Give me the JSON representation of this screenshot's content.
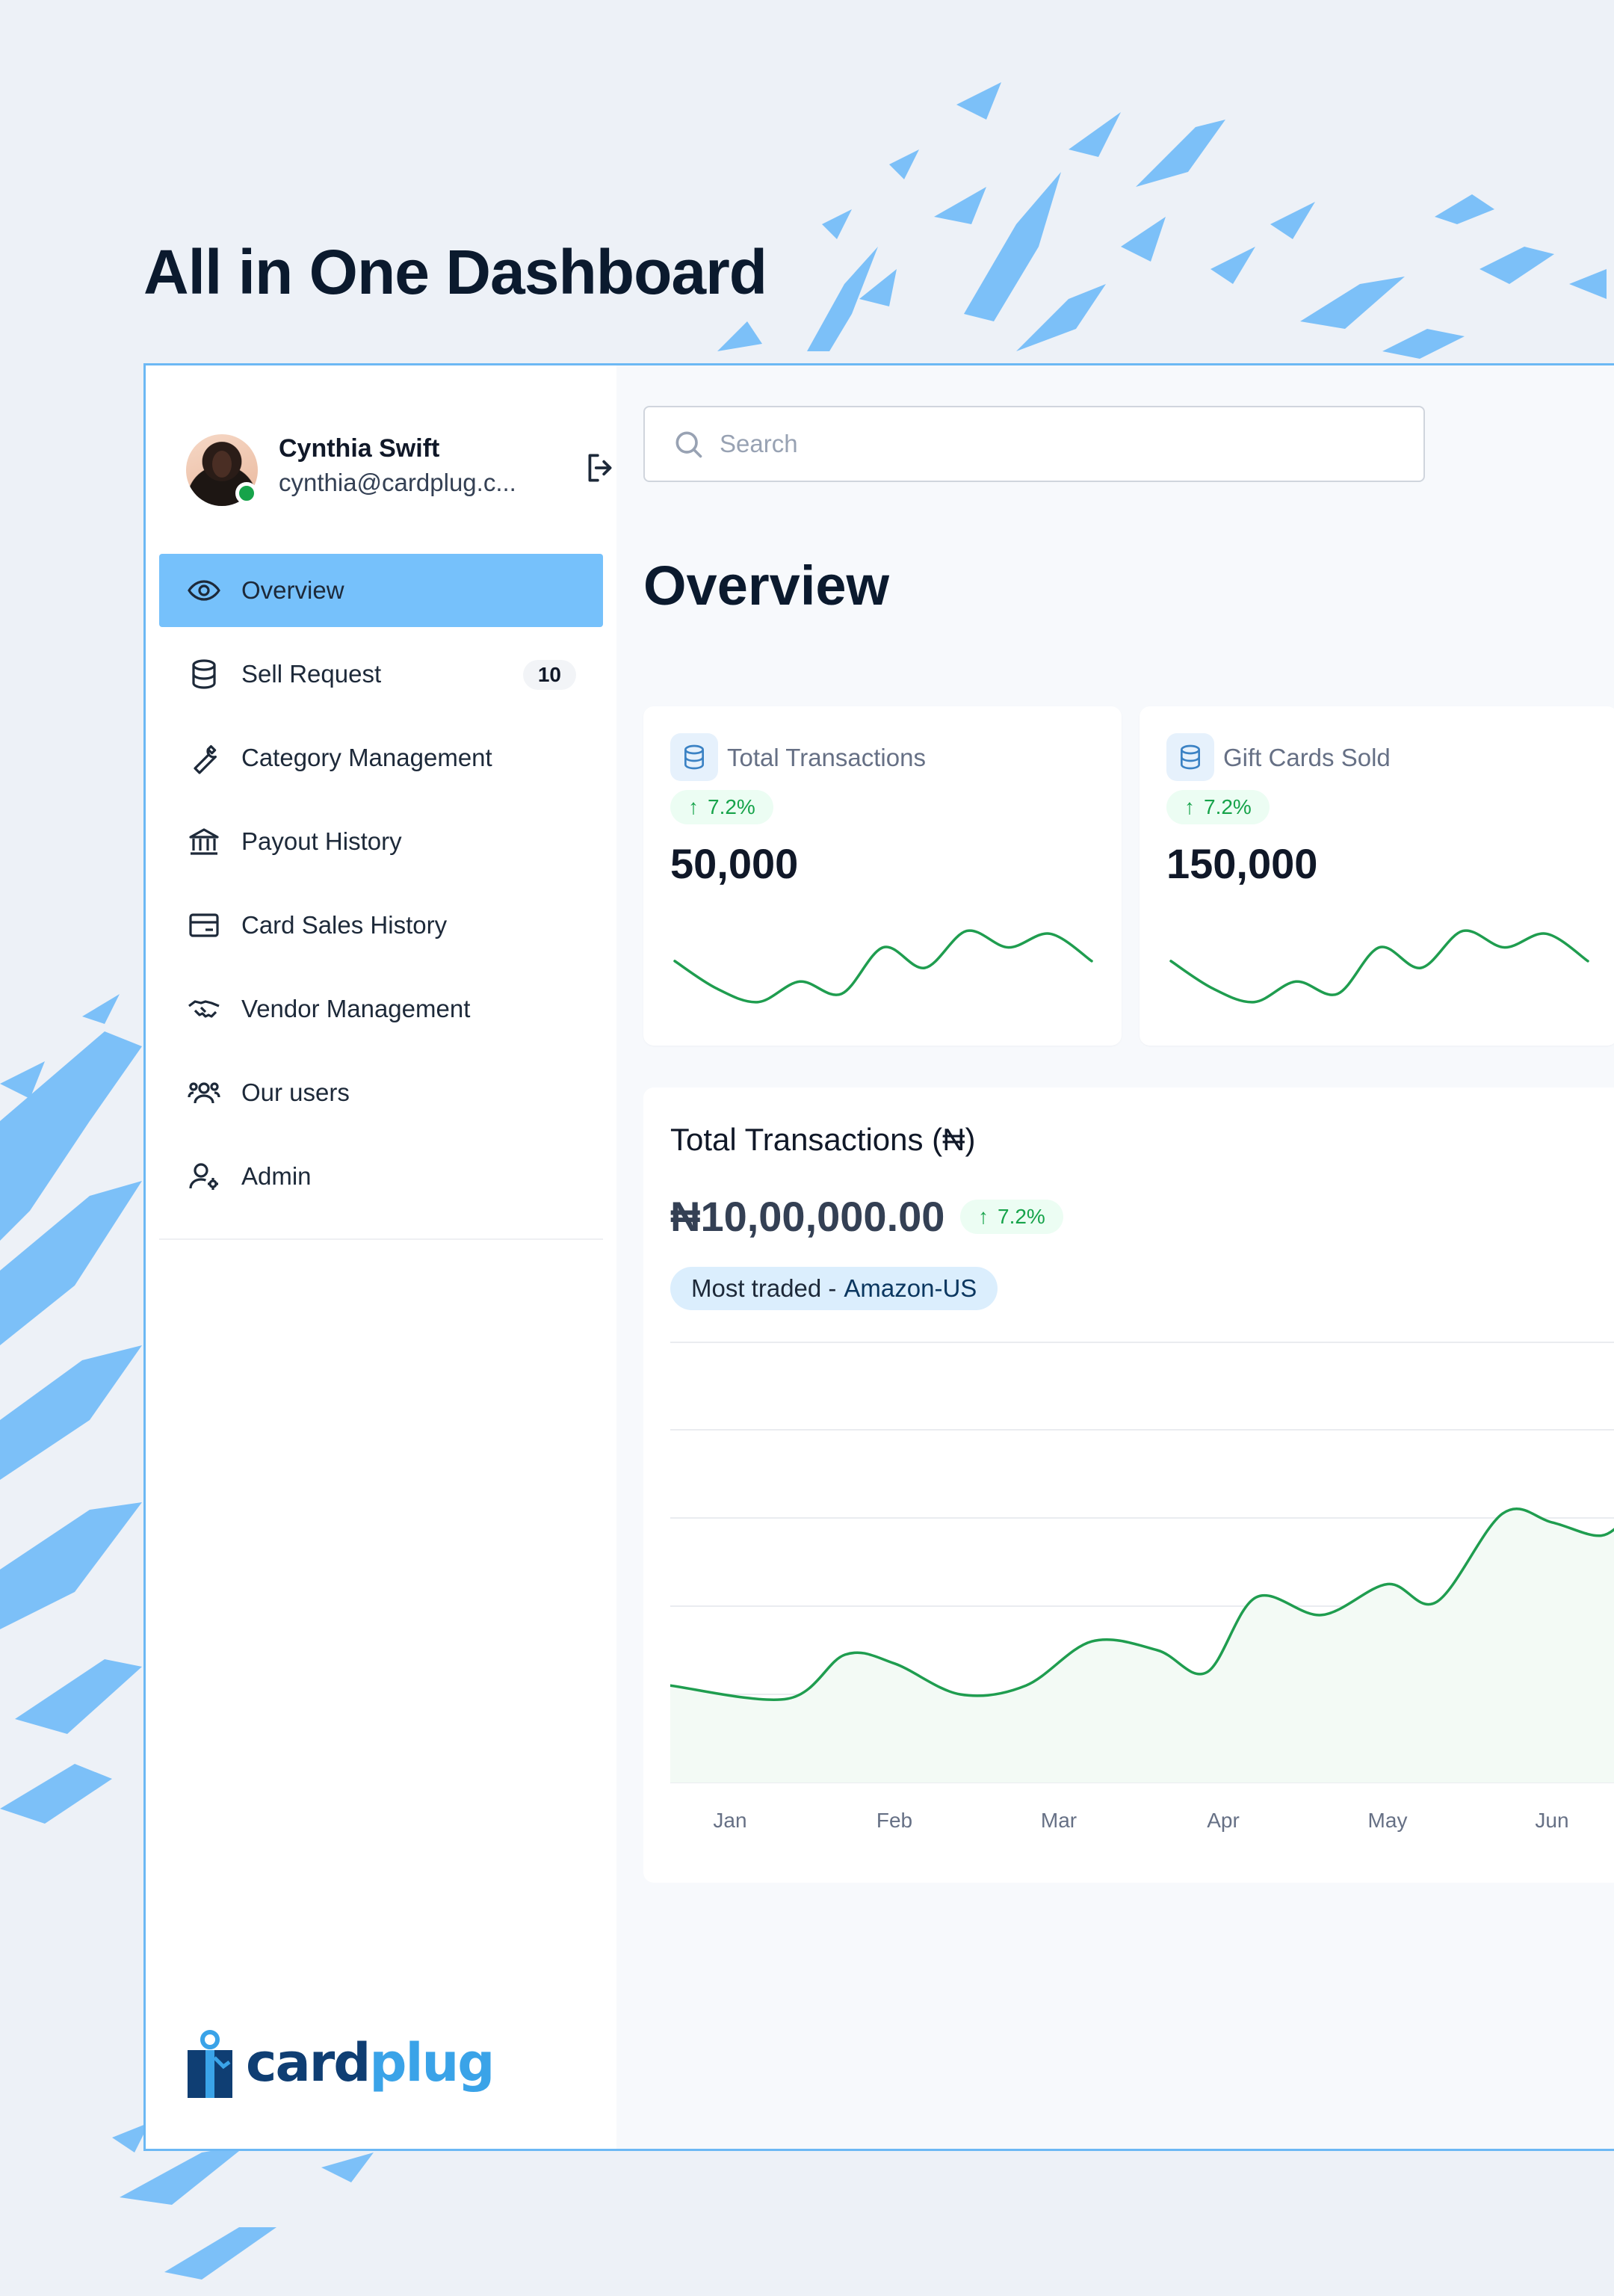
{
  "hero_title": "All in One Dashboard",
  "colors": {
    "accent": "#76c1fb",
    "positive": "#16a34a",
    "brand_dark": "#0f3e73",
    "brand_light": "#3aa3e8",
    "line": "#1f9d4f"
  },
  "user": {
    "name": "Cynthia Swift",
    "email": "cynthia@cardplug.c...",
    "status": "online"
  },
  "nav": {
    "items": [
      {
        "label": "Overview",
        "icon": "eye-icon",
        "active": true
      },
      {
        "label": "Sell Request",
        "icon": "coins-stack-icon",
        "badge": "10"
      },
      {
        "label": "Category Management",
        "icon": "wrench-icon"
      },
      {
        "label": "Payout History",
        "icon": "bank-icon"
      },
      {
        "label": "Card Sales History",
        "icon": "credit-card-icon"
      },
      {
        "label": "Vendor Management",
        "icon": "handshake-icon"
      },
      {
        "label": "Our users",
        "icon": "users-icon"
      },
      {
        "label": "Admin",
        "icon": "user-settings-icon"
      }
    ]
  },
  "brand": {
    "part1": "card",
    "part2": "plug"
  },
  "search": {
    "placeholder": "Search",
    "value": ""
  },
  "page_title": "Overview",
  "stats": [
    {
      "title": "Total Transactions",
      "change": "7.2%",
      "value": "50,000",
      "icon": "coins-stack-icon"
    },
    {
      "title": "Gift Cards Sold",
      "change": "7.2%",
      "value": "150,000",
      "icon": "coins-stack-icon"
    }
  ],
  "summary": {
    "title": "Total Transactions (₦)",
    "value": "₦10,00,000.00",
    "change": "7.2%",
    "most_traded_label": "Most traded -",
    "most_traded_value": "Amazon-US"
  },
  "chart_data": [
    {
      "type": "line",
      "x": [
        0,
        1,
        2,
        3,
        4,
        5,
        6,
        7,
        8,
        9,
        10
      ],
      "series": [
        {
          "values": [
            3,
            1,
            0,
            1.5,
            0.6,
            4,
            2.5,
            5.2,
            4,
            5,
            3
          ]
        }
      ],
      "ylim": [
        -1,
        6
      ],
      "grid": false
    },
    {
      "type": "line",
      "x": [
        0,
        1,
        2,
        3,
        4,
        5,
        6,
        7,
        8,
        9,
        10
      ],
      "series": [
        {
          "values": [
            3,
            1,
            0,
            1.5,
            0.6,
            4,
            2.5,
            5.2,
            4,
            5,
            3
          ]
        }
      ],
      "ylim": [
        -1,
        6
      ],
      "grid": false
    },
    {
      "type": "area",
      "categories": [
        "Jan",
        "Feb",
        "Mar",
        "Apr",
        "May",
        "Jun"
      ],
      "x": [
        0,
        0.35,
        0.7,
        1.0,
        1.4,
        1.8,
        2.2,
        2.6,
        2.9,
        3.2,
        3.6,
        4.0,
        4.3,
        4.7,
        5.0,
        5.3,
        5.7
      ],
      "series": [
        {
          "values": [
            22,
            19,
            29,
            27,
            20,
            22,
            32,
            30,
            25,
            42,
            38,
            45,
            41,
            61,
            59,
            56,
            61
          ]
        }
      ],
      "ylim": [
        0,
        100
      ],
      "grid": true
    }
  ]
}
